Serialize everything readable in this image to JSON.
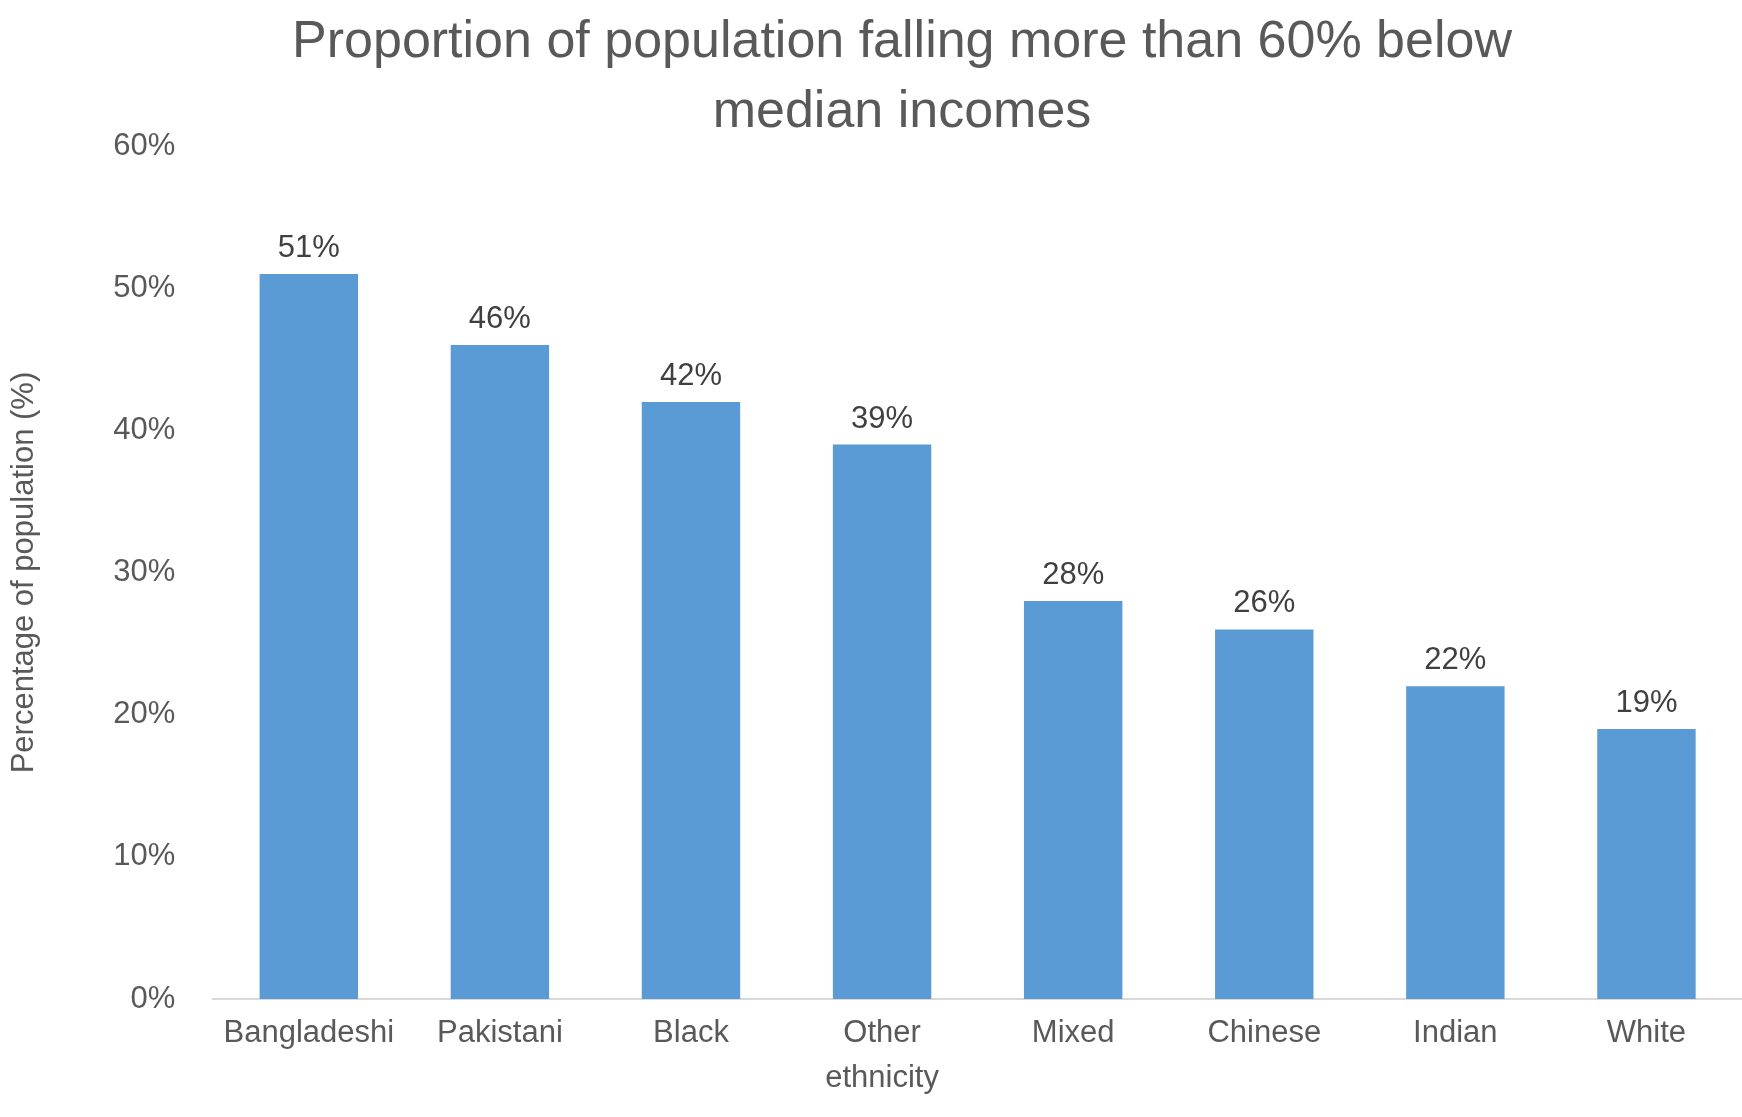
{
  "chart_data": {
    "type": "bar",
    "title": "Proportion of population falling more than 60% below median incomes",
    "ylabel": "Percentage of population (%)",
    "categories": [
      "Bangladeshi",
      "Pakistani",
      "Black",
      "Other ethnicity",
      "Mixed",
      "Chinese",
      "Indian",
      "White"
    ],
    "values": [
      51,
      46,
      42,
      39,
      28,
      26,
      22,
      19
    ],
    "color": "#5b9bd5",
    "value_labels": [
      "51%",
      "46%",
      "42%",
      "39%",
      "28%",
      "26%",
      "22%",
      "19%"
    ],
    "ylim": [
      0,
      60
    ],
    "yticks": [
      {
        "value": 0,
        "label": "0%"
      },
      {
        "value": 10,
        "label": "10%"
      },
      {
        "value": 20,
        "label": "20%"
      },
      {
        "value": 30,
        "label": "30%"
      },
      {
        "value": 40,
        "label": "40%"
      },
      {
        "value": 50,
        "label": "50%"
      },
      {
        "value": 60,
        "label": "60%"
      }
    ]
  }
}
